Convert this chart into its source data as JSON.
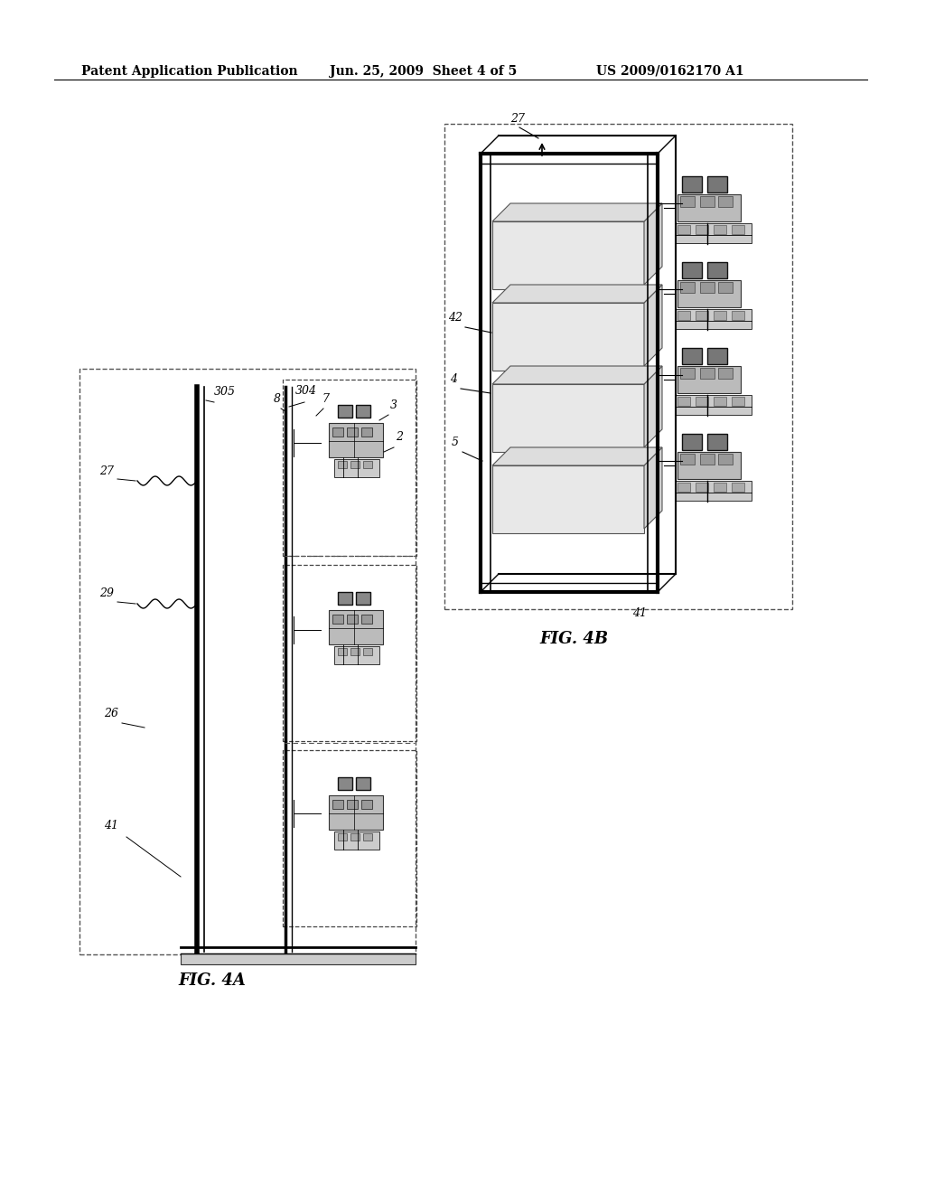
{
  "background_color": "#ffffff",
  "header_text": "Patent Application Publication",
  "header_date": "Jun. 25, 2009  Sheet 4 of 5",
  "header_patent": "US 2009/0162170 A1",
  "fig4a_label": "FIG. 4A",
  "fig4b_label": "FIG. 4B",
  "title_fontsize": 10,
  "label_fontsize": 9,
  "ref_fontsize": 9
}
